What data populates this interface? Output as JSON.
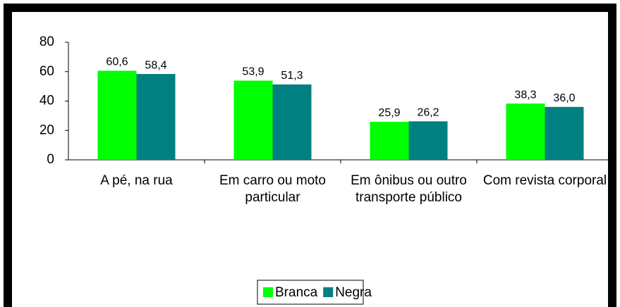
{
  "chart_data": {
    "type": "bar",
    "categories": [
      "A pé, na rua",
      "Em carro ou moto particular",
      "Em ônibus ou outro transporte público",
      "Com revista corporal"
    ],
    "series": [
      {
        "name": "Branca",
        "color": "#00ff00",
        "values": [
          60.6,
          53.9,
          25.9,
          38.3
        ],
        "value_labels": [
          "60,6",
          "53,9",
          "25,9",
          "38,3"
        ]
      },
      {
        "name": "Negra",
        "color": "#008080",
        "values": [
          58.4,
          51.3,
          26.2,
          36.0
        ],
        "value_labels": [
          "58,4",
          "51,3",
          "26,2",
          "36,0"
        ]
      }
    ],
    "ylim": [
      0,
      80
    ],
    "yticks": [
      0,
      20,
      40,
      60,
      80
    ],
    "grid": false
  }
}
